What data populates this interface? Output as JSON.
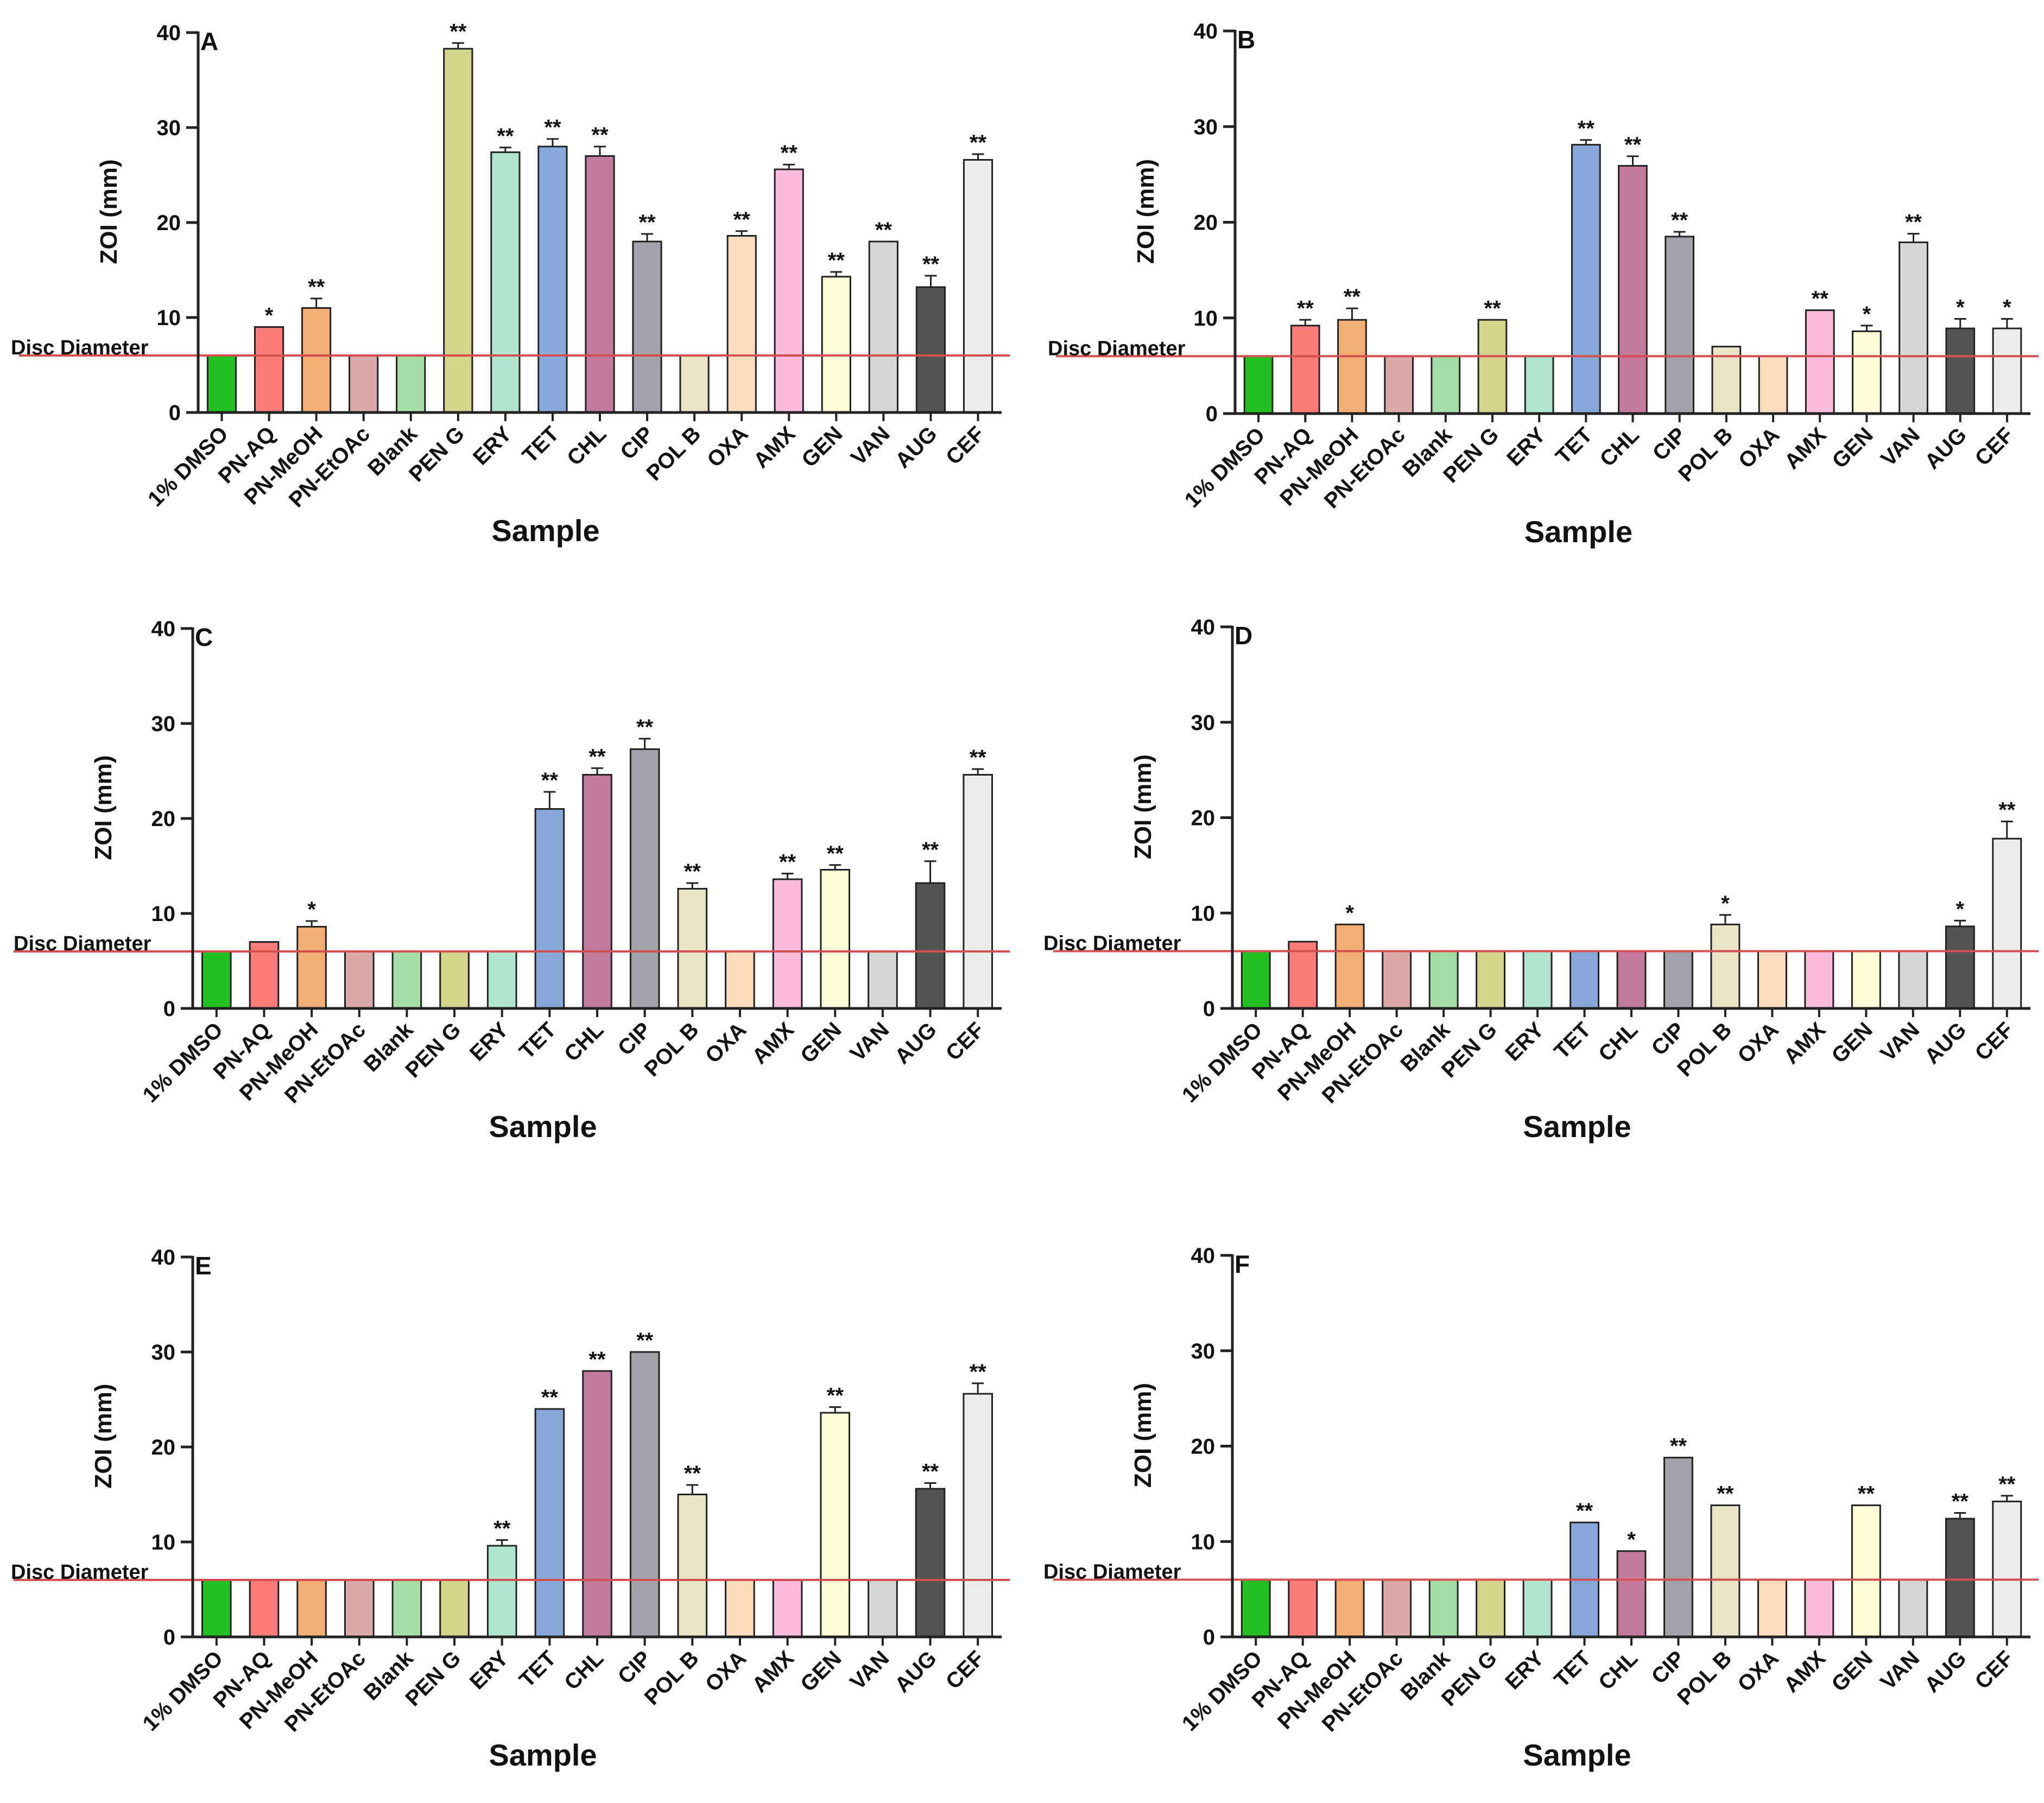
{
  "figure": {
    "palette": [
      "#22c022",
      "#fb7a7a",
      "#f2ae74",
      "#d9aaa8",
      "#a6dca6",
      "#d4d48c",
      "#b0e6cf",
      "#88a8d8",
      "#c47a9e",
      "#a2a2a8",
      "#eae4c6",
      "#fcdcbc",
      "#fcbadc",
      "#fefed8",
      "#d6d6d6",
      "#545454",
      "#ececec"
    ],
    "ref_line_color": "#d45050"
  },
  "chart_data": [
    {
      "type": "bar",
      "title": "A",
      "xlabel": "Sample",
      "ylabel": "ZOI (mm)",
      "ylim": [
        0,
        40
      ],
      "yticks": [
        0,
        10,
        20,
        30,
        40
      ],
      "reference_line": {
        "label": "Disc Diameter",
        "value": 6
      },
      "categories": [
        "1% DMSO",
        "PN-AQ",
        "PN-MeOH",
        "PN-EtOAc",
        "Blank",
        "PEN G",
        "ERY",
        "TET",
        "CHL",
        "CIP",
        "POL B",
        "OXA",
        "AMX",
        "GEN",
        "VAN",
        "AUG",
        "CEF"
      ],
      "values": [
        6,
        9,
        11,
        6,
        6,
        38.3,
        27.4,
        28,
        27,
        18,
        6,
        18.6,
        25.6,
        14.3,
        18,
        13.2,
        26.6
      ],
      "errors": [
        0,
        0,
        1,
        0,
        0,
        0.6,
        0.5,
        0.8,
        1,
        0.8,
        0,
        0.5,
        0.5,
        0.5,
        0,
        1.2,
        0.6
      ],
      "significance": [
        "",
        "*",
        "**",
        "",
        "",
        "**",
        "**",
        "**",
        "**",
        "**",
        "",
        "**",
        "**",
        "**",
        "**",
        "**",
        "**"
      ]
    },
    {
      "type": "bar",
      "title": "B",
      "xlabel": "Sample",
      "ylabel": "ZOI (mm)",
      "ylim": [
        0,
        40
      ],
      "yticks": [
        0,
        10,
        20,
        30,
        40
      ],
      "reference_line": {
        "label": "Disc Diameter",
        "value": 6
      },
      "categories": [
        "1% DMSO",
        "PN-AQ",
        "PN-MeOH",
        "PN-EtOAc",
        "Blank",
        "PEN G",
        "ERY",
        "TET",
        "CHL",
        "CIP",
        "POL B",
        "OXA",
        "AMX",
        "GEN",
        "VAN",
        "AUG",
        "CEF"
      ],
      "values": [
        6,
        9.2,
        9.8,
        6,
        6,
        9.8,
        6,
        28.1,
        25.9,
        18.5,
        7,
        6,
        10.8,
        8.6,
        17.9,
        8.9,
        8.9
      ],
      "errors": [
        0,
        0.6,
        1.2,
        0,
        0,
        0,
        0,
        0.5,
        1,
        0.5,
        0,
        0,
        0,
        0.6,
        0.9,
        1,
        1
      ],
      "significance": [
        "",
        "**",
        "**",
        "",
        "",
        "**",
        "",
        "**",
        "**",
        "**",
        "",
        "",
        "**",
        "*",
        "**",
        "*",
        "*"
      ]
    },
    {
      "type": "bar",
      "title": "C",
      "xlabel": "Sample",
      "ylabel": "ZOI (mm)",
      "ylim": [
        0,
        40
      ],
      "yticks": [
        0,
        10,
        20,
        30,
        40
      ],
      "reference_line": {
        "label": "Disc Diameter",
        "value": 6
      },
      "categories": [
        "1% DMSO",
        "PN-AQ",
        "PN-MeOH",
        "PN-EtOAc",
        "Blank",
        "PEN G",
        "ERY",
        "TET",
        "CHL",
        "CIP",
        "POL B",
        "OXA",
        "AMX",
        "GEN",
        "VAN",
        "AUG",
        "CEF"
      ],
      "values": [
        6,
        7,
        8.6,
        6,
        6,
        6,
        6,
        21,
        24.6,
        27.3,
        12.6,
        6,
        13.6,
        14.6,
        6,
        13.2,
        24.6
      ],
      "errors": [
        0,
        0,
        0.6,
        0,
        0,
        0,
        0,
        1.8,
        0.7,
        1.1,
        0.6,
        0,
        0.6,
        0.5,
        0,
        2.3,
        0.6
      ],
      "significance": [
        "",
        "",
        "*",
        "",
        "",
        "",
        "",
        "**",
        "**",
        "**",
        "**",
        "",
        "**",
        "**",
        "",
        "**",
        "**"
      ]
    },
    {
      "type": "bar",
      "title": "D",
      "xlabel": "Sample",
      "ylabel": "ZOI (mm)",
      "ylim": [
        0,
        40
      ],
      "yticks": [
        0,
        10,
        20,
        30,
        40
      ],
      "reference_line": {
        "label": "Disc Diameter",
        "value": 6
      },
      "categories": [
        "1% DMSO",
        "PN-AQ",
        "PN-MeOH",
        "PN-EtOAc",
        "Blank",
        "PEN G",
        "ERY",
        "TET",
        "CHL",
        "CIP",
        "POL B",
        "OXA",
        "AMX",
        "GEN",
        "VAN",
        "AUG",
        "CEF"
      ],
      "values": [
        6,
        7,
        8.8,
        6,
        6,
        6,
        6,
        6,
        6,
        6,
        8.8,
        6,
        6,
        6,
        6,
        8.6,
        17.8
      ],
      "errors": [
        0,
        0,
        0,
        0,
        0,
        0,
        0,
        0,
        0,
        0,
        1,
        0,
        0,
        0,
        0,
        0.6,
        1.8
      ],
      "significance": [
        "",
        "",
        "*",
        "",
        "",
        "",
        "",
        "",
        "",
        "",
        "*",
        "",
        "",
        "",
        "",
        "*",
        "**"
      ]
    },
    {
      "type": "bar",
      "title": "E",
      "xlabel": "Sample",
      "ylabel": "ZOI (mm)",
      "ylim": [
        0,
        40
      ],
      "yticks": [
        0,
        10,
        20,
        30,
        40
      ],
      "reference_line": {
        "label": "Disc Diameter",
        "value": 6
      },
      "categories": [
        "1% DMSO",
        "PN-AQ",
        "PN-MeOH",
        "PN-EtOAc",
        "Blank",
        "PEN G",
        "ERY",
        "TET",
        "CHL",
        "CIP",
        "POL B",
        "OXA",
        "AMX",
        "GEN",
        "VAN",
        "AUG",
        "CEF"
      ],
      "values": [
        6,
        6,
        6,
        6,
        6,
        6,
        9.6,
        24,
        28,
        30,
        15,
        6,
        6,
        23.6,
        6,
        15.6,
        25.6
      ],
      "errors": [
        0,
        0,
        0,
        0,
        0,
        0,
        0.6,
        0,
        0,
        0,
        1,
        0,
        0,
        0.6,
        0,
        0.6,
        1.1
      ],
      "significance": [
        "",
        "",
        "",
        "",
        "",
        "",
        "**",
        "**",
        "**",
        "**",
        "**",
        "",
        "",
        "**",
        "",
        "**",
        "**"
      ]
    },
    {
      "type": "bar",
      "title": "F",
      "xlabel": "Sample",
      "ylabel": "ZOI (mm)",
      "ylim": [
        0,
        40
      ],
      "yticks": [
        0,
        10,
        20,
        30,
        40
      ],
      "reference_line": {
        "label": "Disc Diameter",
        "value": 6
      },
      "categories": [
        "1% DMSO",
        "PN-AQ",
        "PN-MeOH",
        "PN-EtOAc",
        "Blank",
        "PEN G",
        "ERY",
        "TET",
        "CHL",
        "CIP",
        "POL B",
        "OXA",
        "AMX",
        "GEN",
        "VAN",
        "AUG",
        "CEF"
      ],
      "values": [
        6,
        6,
        6,
        6,
        6,
        6,
        6,
        12,
        9,
        18.8,
        13.8,
        6,
        6,
        13.8,
        6,
        12.4,
        14.2
      ],
      "errors": [
        0,
        0,
        0,
        0,
        0,
        0,
        0,
        0,
        0,
        0,
        0,
        0,
        0,
        0,
        0,
        0.6,
        0.6
      ],
      "significance": [
        "",
        "",
        "",
        "",
        "",
        "",
        "",
        "**",
        "*",
        "**",
        "**",
        "",
        "",
        "**",
        "",
        "**",
        "**"
      ]
    }
  ]
}
